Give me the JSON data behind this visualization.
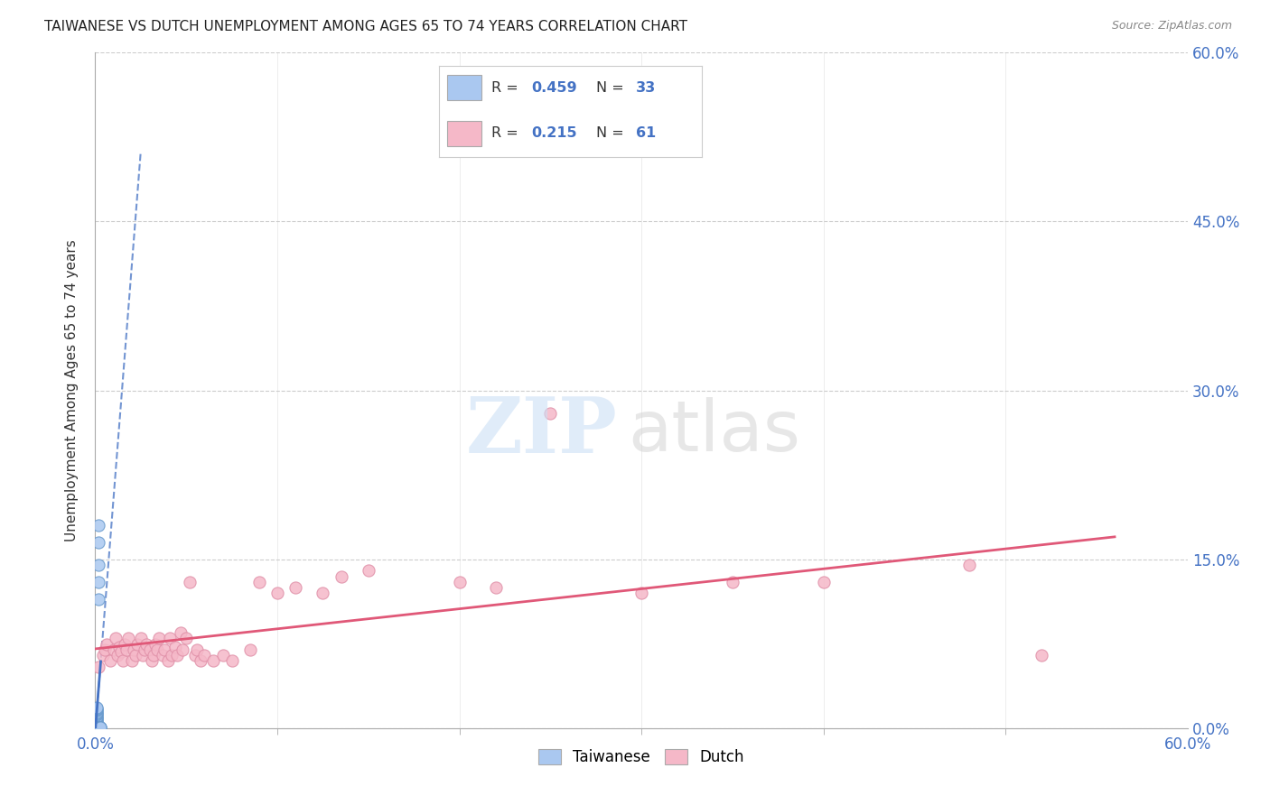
{
  "title": "TAIWANESE VS DUTCH UNEMPLOYMENT AMONG AGES 65 TO 74 YEARS CORRELATION CHART",
  "source": "Source: ZipAtlas.com",
  "ylabel": "Unemployment Among Ages 65 to 74 years",
  "xmin": 0.0,
  "xmax": 0.6,
  "ymin": 0.0,
  "ymax": 0.6,
  "yticks": [
    0.0,
    0.15,
    0.3,
    0.45,
    0.6
  ],
  "ytick_labels_right": [
    "0.0%",
    "15.0%",
    "30.0%",
    "45.0%",
    "60.0%"
  ],
  "xtick_left_label": "0.0%",
  "xtick_right_label": "60.0%",
  "taiwan_R": "0.459",
  "taiwan_N": "33",
  "dutch_R": "0.215",
  "dutch_N": "61",
  "taiwan_color": "#aac8f0",
  "taiwan_edge": "#6699cc",
  "dutch_color": "#f5b8c8",
  "dutch_edge": "#e090a8",
  "taiwan_line_color": "#4472c4",
  "dutch_line_color": "#e05878",
  "background_color": "#ffffff",
  "axis_color": "#4472c4",
  "title_color": "#222222",
  "grid_color": "#cccccc",
  "label_text_color": "#333333",
  "watermark_zip_color": "#cce0f5",
  "watermark_atlas_color": "#d0d0d0",
  "taiwan_x": [
    0.001,
    0.001,
    0.001,
    0.001,
    0.001,
    0.001,
    0.001,
    0.001,
    0.001,
    0.001,
    0.001,
    0.001,
    0.001,
    0.001,
    0.001,
    0.001,
    0.001,
    0.001,
    0.001,
    0.001,
    0.002,
    0.002,
    0.002,
    0.002,
    0.002,
    0.002,
    0.002,
    0.002,
    0.002,
    0.002,
    0.003,
    0.003,
    0.003
  ],
  "taiwan_y": [
    0.001,
    0.002,
    0.003,
    0.004,
    0.005,
    0.006,
    0.007,
    0.008,
    0.009,
    0.01,
    0.011,
    0.012,
    0.013,
    0.014,
    0.015,
    0.016,
    0.017,
    0.018,
    0.019,
    0.001,
    0.001,
    0.001,
    0.001,
    0.001,
    0.001,
    0.115,
    0.13,
    0.145,
    0.165,
    0.18,
    0.001,
    0.001,
    0.001
  ],
  "dutch_x": [
    0.002,
    0.004,
    0.005,
    0.006,
    0.008,
    0.01,
    0.011,
    0.012,
    0.013,
    0.014,
    0.015,
    0.016,
    0.017,
    0.018,
    0.02,
    0.021,
    0.022,
    0.023,
    0.025,
    0.026,
    0.027,
    0.028,
    0.03,
    0.031,
    0.032,
    0.033,
    0.034,
    0.035,
    0.037,
    0.038,
    0.04,
    0.041,
    0.042,
    0.044,
    0.045,
    0.047,
    0.048,
    0.05,
    0.052,
    0.055,
    0.056,
    0.058,
    0.06,
    0.065,
    0.07,
    0.075,
    0.085,
    0.09,
    0.1,
    0.11,
    0.125,
    0.135,
    0.15,
    0.2,
    0.22,
    0.25,
    0.3,
    0.35,
    0.4,
    0.48,
    0.52
  ],
  "dutch_y": [
    0.055,
    0.065,
    0.07,
    0.075,
    0.06,
    0.07,
    0.08,
    0.065,
    0.072,
    0.068,
    0.06,
    0.075,
    0.07,
    0.08,
    0.06,
    0.07,
    0.065,
    0.075,
    0.08,
    0.065,
    0.07,
    0.075,
    0.07,
    0.06,
    0.065,
    0.075,
    0.07,
    0.08,
    0.065,
    0.07,
    0.06,
    0.08,
    0.065,
    0.072,
    0.065,
    0.085,
    0.07,
    0.08,
    0.13,
    0.065,
    0.07,
    0.06,
    0.065,
    0.06,
    0.065,
    0.06,
    0.07,
    0.13,
    0.12,
    0.125,
    0.12,
    0.135,
    0.14,
    0.13,
    0.125,
    0.28,
    0.12,
    0.13,
    0.13,
    0.145,
    0.065
  ]
}
